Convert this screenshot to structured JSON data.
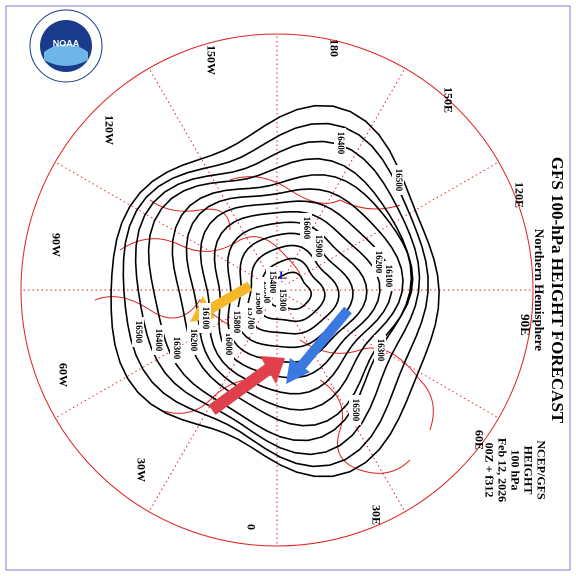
{
  "header": {
    "title": "GFS 100-hPa HEIGHT FORECAST",
    "subtitle": "Northern Hemisphere",
    "center_meridian": "90E"
  },
  "info": [
    "NCEP/GFS",
    "HEIGHT",
    "100 hPa",
    "Feb 12, 2026",
    "00Z + f312"
  ],
  "longitude_labels": [
    "180",
    "150E",
    "120E",
    "60E",
    "30E",
    "0",
    "30W",
    "60W",
    "90W",
    "120W",
    "150W"
  ],
  "contour_labels": [
    "16400",
    "16500",
    "16600",
    "15900",
    "16200",
    "16100",
    "16300",
    "16500",
    "16400",
    "16300",
    "16200",
    "16100",
    "16000",
    "15800",
    "15700",
    "15600",
    "15500",
    "15400",
    "15300",
    "16500"
  ],
  "low_marker": "L"
}
